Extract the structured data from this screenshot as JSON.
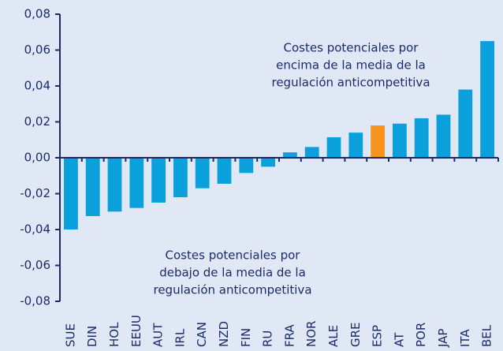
{
  "chart_data": {
    "type": "bar",
    "categories": [
      "SUE",
      "DIN",
      "HOL",
      "EEUU",
      "AUT",
      "IRL",
      "CAN",
      "NZD",
      "FIN",
      "RU",
      "FRA",
      "NOR",
      "ALE",
      "GRE",
      "ESP",
      "AT",
      "POR",
      "JAP",
      "ITA",
      "BEL"
    ],
    "values": [
      -0.04,
      -0.0325,
      -0.03,
      -0.028,
      -0.025,
      -0.022,
      -0.017,
      -0.0145,
      -0.0085,
      -0.005,
      0.003,
      0.006,
      0.0114,
      0.014,
      0.018,
      0.019,
      0.022,
      0.024,
      0.038,
      0.065
    ],
    "colors": [
      "#0aa0dc",
      "#0aa0dc",
      "#0aa0dc",
      "#0aa0dc",
      "#0aa0dc",
      "#0aa0dc",
      "#0aa0dc",
      "#0aa0dc",
      "#0aa0dc",
      "#0aa0dc",
      "#0aa0dc",
      "#0aa0dc",
      "#0aa0dc",
      "#0aa0dc",
      "#f7941d",
      "#0aa0dc",
      "#0aa0dc",
      "#0aa0dc",
      "#0aa0dc",
      "#0aa0dc"
    ],
    "ylim": [
      -0.08,
      0.08
    ],
    "yticks": [
      {
        "value": -0.08,
        "label": "-0,08"
      },
      {
        "value": -0.06,
        "label": "-0,06"
      },
      {
        "value": -0.04,
        "label": "-0,04"
      },
      {
        "value": -0.02,
        "label": "-0,02"
      },
      {
        "value": 0,
        "label": "0,00"
      },
      {
        "value": 0.02,
        "label": "0,02"
      },
      {
        "value": 0.04,
        "label": "0,04"
      },
      {
        "value": 0.06,
        "label": "0,06"
      },
      {
        "value": 0.08,
        "label": "0,08"
      }
    ],
    "grid": false,
    "annotations": [
      [
        "Costes potenciales por",
        "encima de la media de la",
        "regulación anticompetitiva"
      ],
      [
        "Costes potenciales por",
        "debajo de la media de la",
        "regulación anticompetitiva"
      ]
    ]
  }
}
